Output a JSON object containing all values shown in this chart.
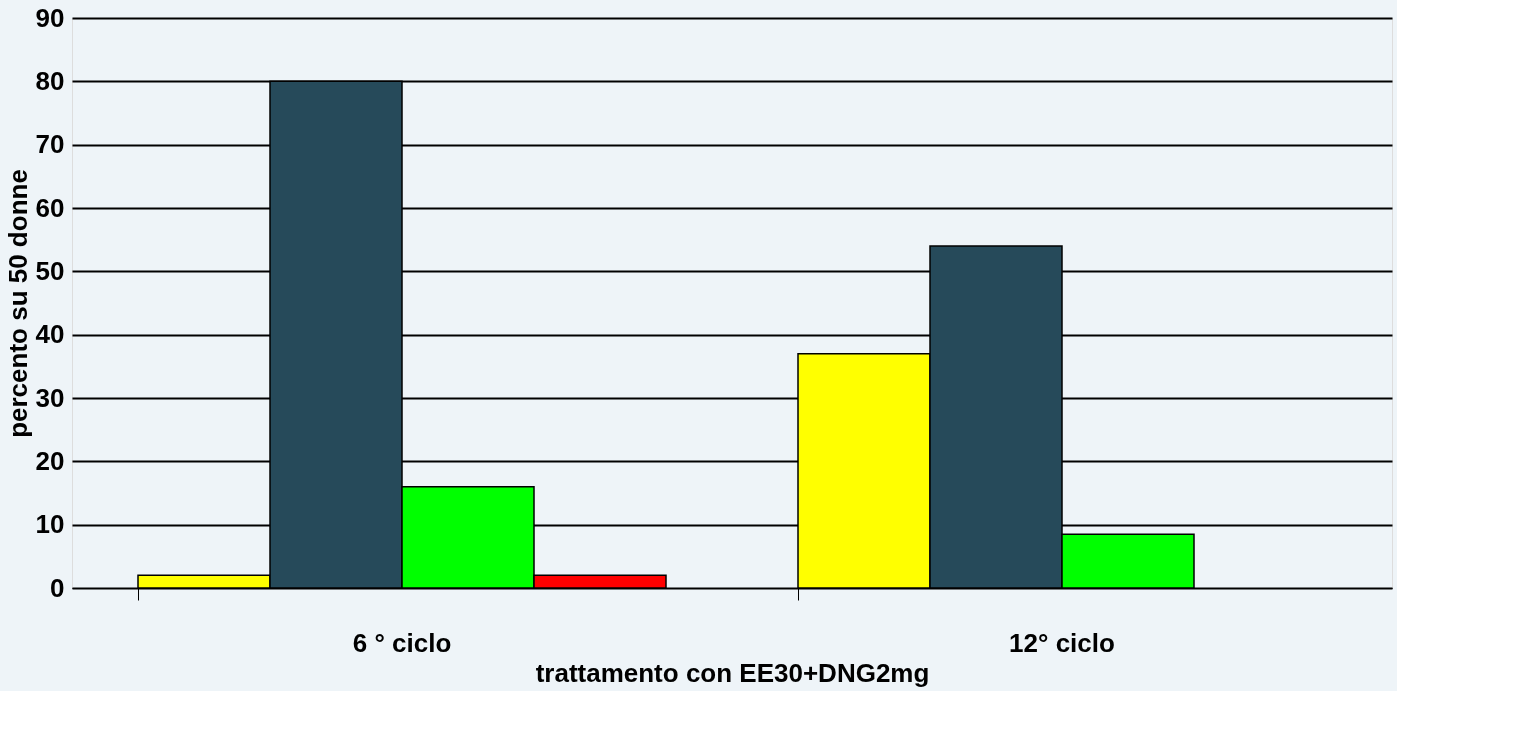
{
  "chart_data": {
    "type": "bar",
    "xlabel": "trattamento con EE30+DNG2mg",
    "ylabel": "percento su 50 donne",
    "categories": [
      "6 ° ciclo",
      "12° ciclo"
    ],
    "series": [
      {
        "color": "#ffff00",
        "values": [
          2,
          37
        ]
      },
      {
        "color": "#264a5a",
        "values": [
          80,
          54
        ]
      },
      {
        "color": "#00ff00",
        "values": [
          16,
          8.5
        ]
      },
      {
        "color": "#ff0000",
        "values": [
          2,
          null
        ]
      }
    ],
    "ylim": [
      0,
      90
    ],
    "yticks": [
      0,
      10,
      20,
      30,
      40,
      50,
      60,
      70,
      80,
      90
    ],
    "grid": "y",
    "legend": false
  }
}
